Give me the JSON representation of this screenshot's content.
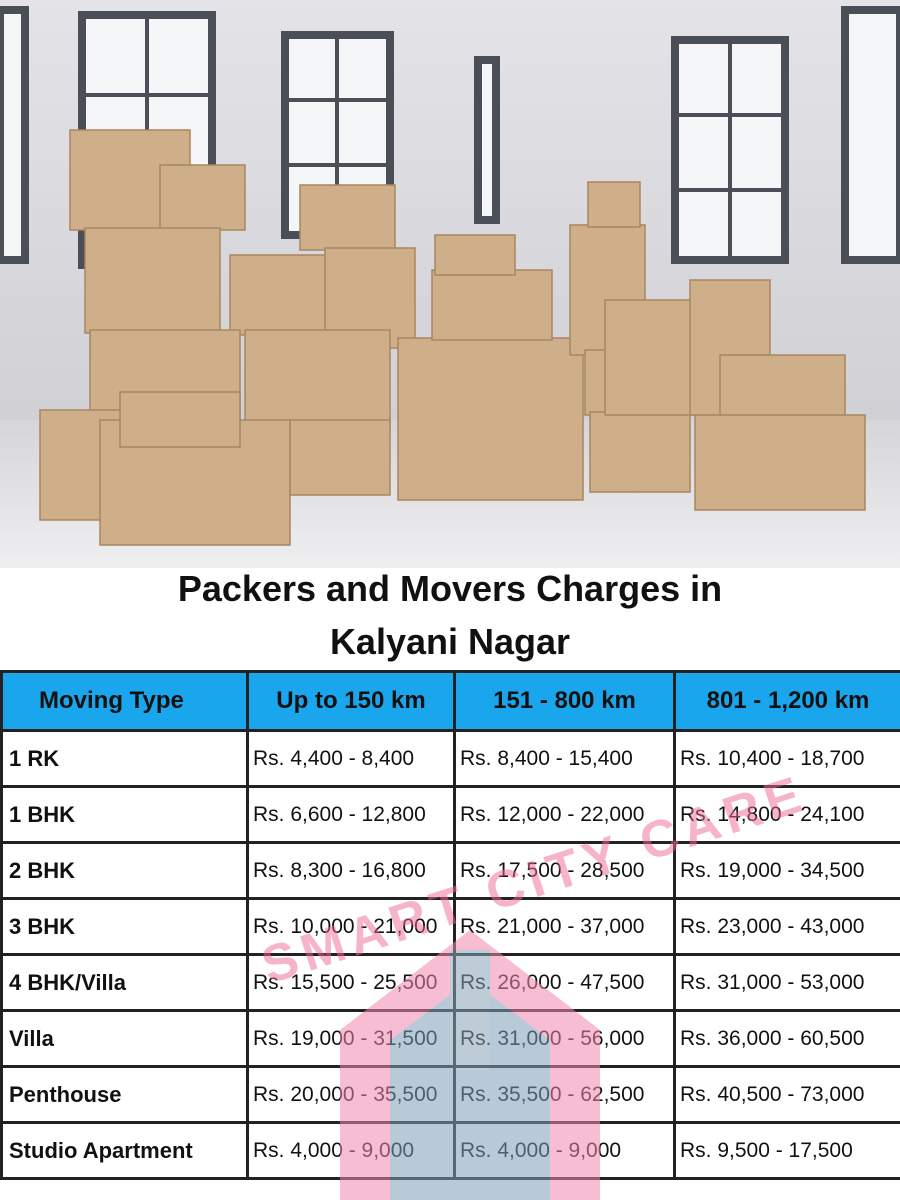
{
  "header": {
    "title": "Packers and Movers Charges in Kalyani Nagar"
  },
  "table": {
    "columns": [
      "Moving Type",
      "Up to 150 km",
      "151 - 800 km",
      "801 - 1,200 km"
    ],
    "rows": [
      [
        "1 RK",
        "Rs. 4,400 - 8,400",
        "Rs. 8,400 - 15,400",
        "Rs. 10,400 - 18,700"
      ],
      [
        "1 BHK",
        "Rs. 6,600 - 12,800",
        "Rs. 12,000 - 22,000",
        "Rs. 14,800 - 24,100"
      ],
      [
        "2 BHK",
        "Rs. 8,300 - 16,800",
        "Rs. 17,500 - 28,500",
        "Rs. 19,000 - 34,500"
      ],
      [
        "3 BHK",
        "Rs. 10,000 - 21,000",
        "Rs. 21,000 - 37,000",
        "Rs. 23,000 - 43,000"
      ],
      [
        "4 BHK/Villa",
        "Rs. 15,500 - 25,500",
        "Rs. 26,000 - 47,500",
        "Rs. 31,000 - 53,000"
      ],
      [
        "Villa",
        "Rs. 19,000 - 31,500",
        "Rs. 31,000 - 56,000",
        "Rs. 36,000 - 60,500"
      ],
      [
        "Penthouse",
        "Rs. 20,000 - 35,500",
        "Rs. 35,500 - 62,500",
        "Rs. 40,500 - 73,000"
      ],
      [
        "Studio Apartment",
        "Rs. 4,000 - 9,000",
        "Rs. 4,000 - 9,000",
        "Rs. 9,500 - 17,500"
      ]
    ]
  },
  "watermark": {
    "text": "SMART CITY CARE"
  }
}
